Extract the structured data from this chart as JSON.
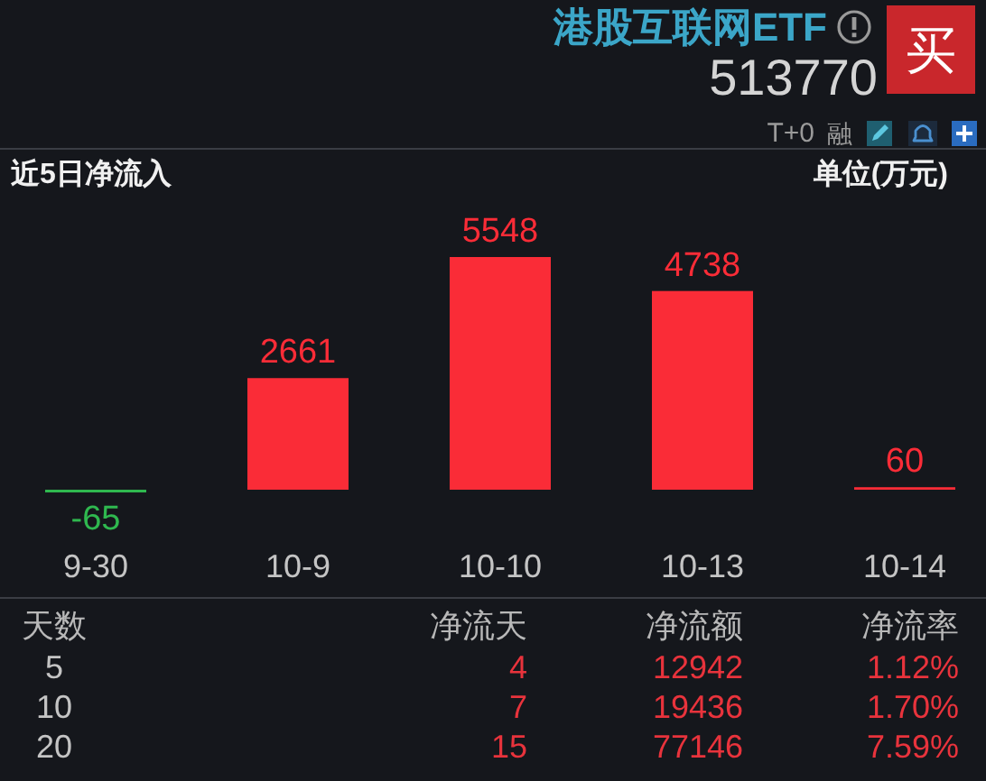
{
  "chart_data": [
    {
      "type": "bar",
      "title": "近5日净流入",
      "ylabel": "单位(万元)",
      "categories": [
        "9-30",
        "10-9",
        "10-10",
        "10-13",
        "10-14"
      ],
      "values": [
        -65,
        2661,
        5548,
        4738,
        60
      ],
      "colors": [
        "#2fb84f",
        "#fa2c37",
        "#fa2c37",
        "#fa2c37",
        "#fa2c37"
      ],
      "data_labels": true,
      "annotations": [
        "港股互联网ETF",
        "513770",
        "T+0",
        "融",
        "买"
      ]
    },
    {
      "type": "other",
      "xlabel": "天数",
      "categories": [
        "5",
        "10",
        "20"
      ],
      "data_labels": true,
      "series": [
        {
          "name": "净流天",
          "values": [
            4,
            7,
            15
          ]
        },
        {
          "name": "净流额",
          "values": [
            12942,
            19436,
            77146
          ]
        },
        {
          "name": "净流率",
          "values": [
            1.12,
            1.7,
            7.59
          ],
          "value_labels": [
            "1.12%",
            "1.70%",
            "7.59%"
          ]
        }
      ]
    }
  ]
}
